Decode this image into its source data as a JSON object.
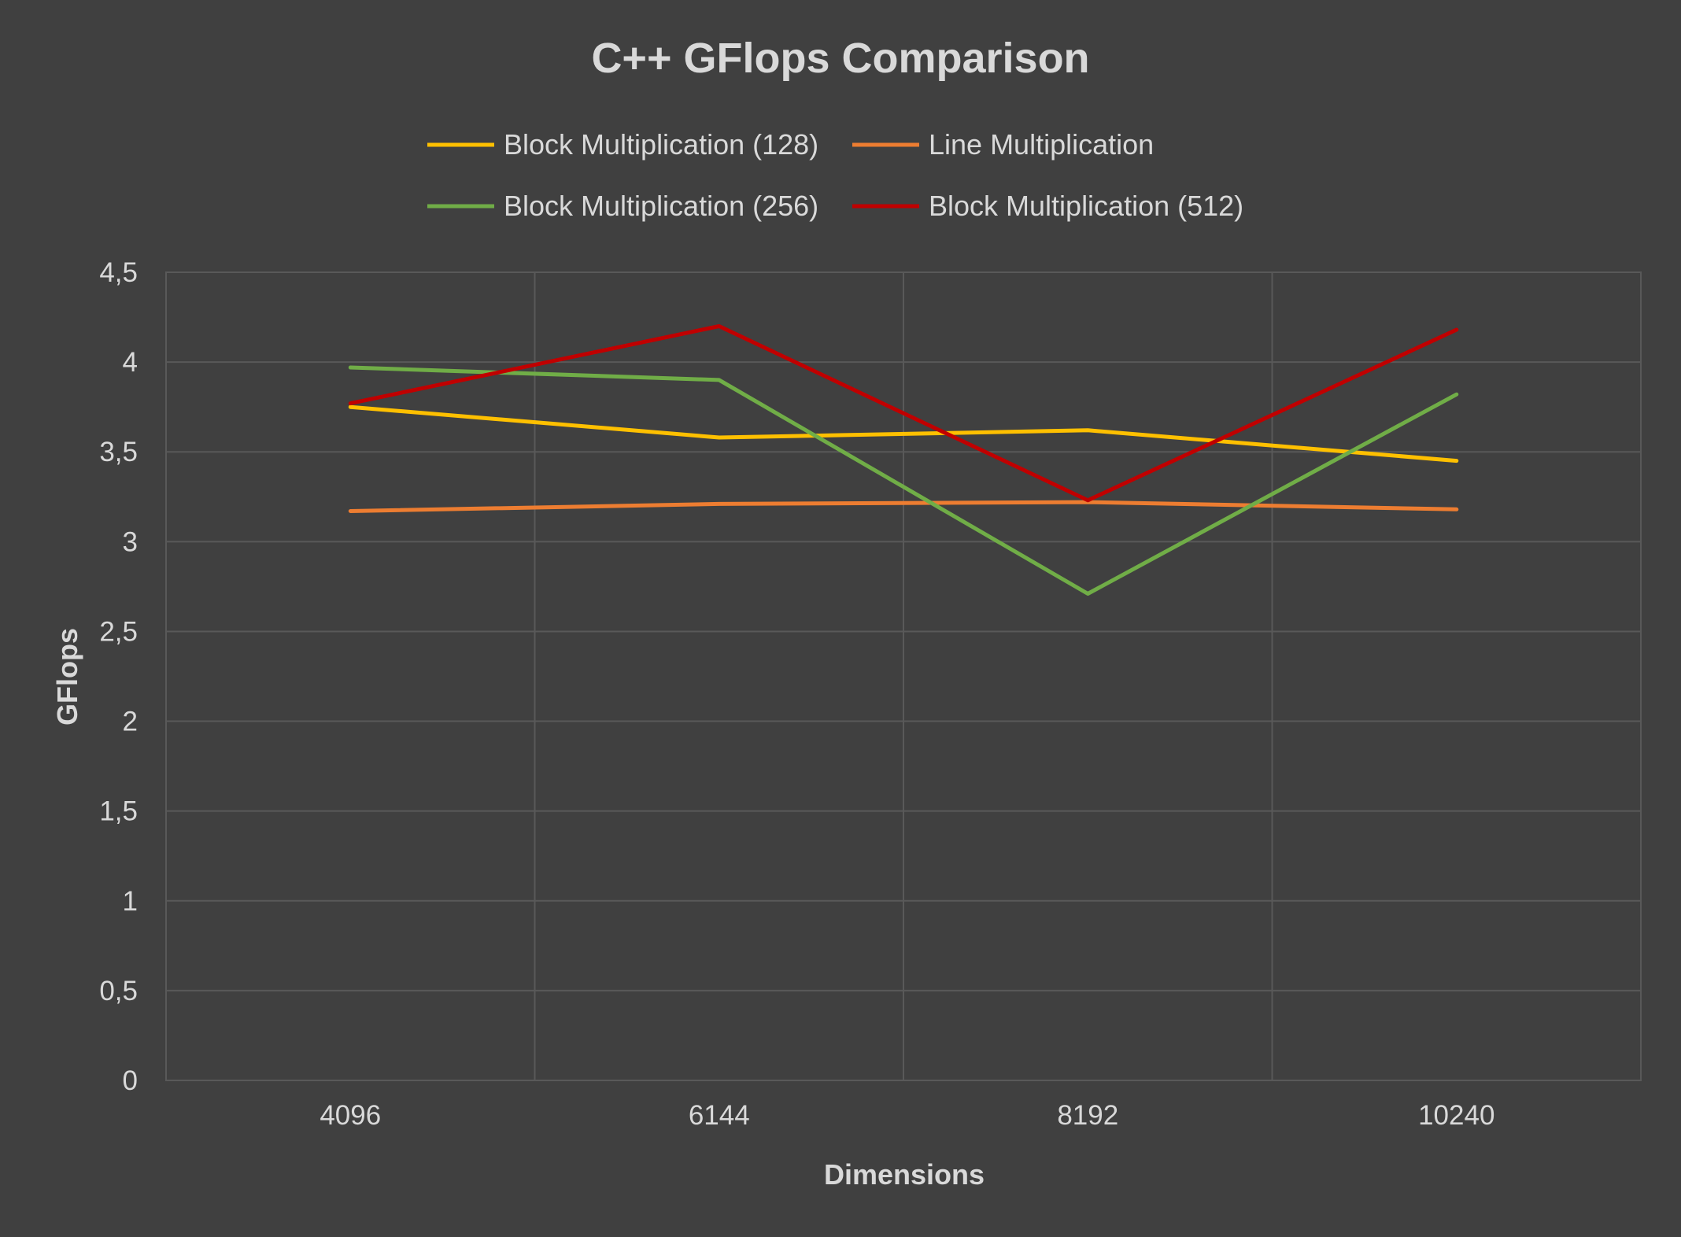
{
  "chart_data": {
    "type": "line",
    "title": "C++ GFlops Comparison",
    "xlabel": "Dimensions",
    "ylabel": "GFlops",
    "categories": [
      "4096",
      "6144",
      "8192",
      "10240"
    ],
    "ylim": [
      0,
      4.5
    ],
    "yticks": [
      0,
      0.5,
      1,
      1.5,
      2,
      2.5,
      3,
      3.5,
      4,
      4.5
    ],
    "ytick_labels": [
      "0",
      "0,5",
      "1",
      "1,5",
      "2",
      "2,5",
      "3",
      "3,5",
      "4",
      "4,5"
    ],
    "grid": true,
    "legend_position": "top",
    "series": [
      {
        "name": "Block Multiplication (128)",
        "color": "#ffc000",
        "values": [
          3.75,
          3.58,
          3.62,
          3.45
        ]
      },
      {
        "name": "Line Multiplication",
        "color": "#ed7d31",
        "values": [
          3.17,
          3.21,
          3.22,
          3.18
        ]
      },
      {
        "name": "Block Multiplication (256)",
        "color": "#70ad47",
        "values": [
          3.97,
          3.9,
          2.71,
          3.82
        ]
      },
      {
        "name": "Block Multiplication (512)",
        "color": "#c00000",
        "values": [
          3.77,
          4.2,
          3.23,
          4.18
        ]
      }
    ]
  },
  "colors": {
    "background": "#404040",
    "plot_background": "#404040",
    "gridline": "#595959",
    "text": "#d9d9d9"
  }
}
